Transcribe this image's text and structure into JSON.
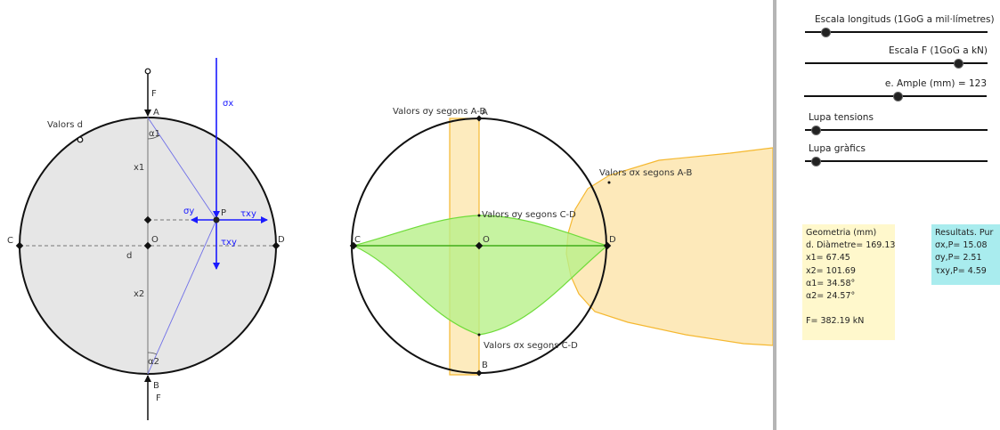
{
  "labels": {
    "F_top": "F",
    "F_bottom": "F",
    "A_left": "A",
    "B_left": "B",
    "C_left": "C",
    "D_left": "D",
    "O_left": "O",
    "P": "P",
    "x1": "x1",
    "x2": "x2",
    "d": "d",
    "alpha1": "α1",
    "alpha2": "α2",
    "valors_d": "Valors d",
    "sigma_x": "σx",
    "sigma_y": "σy",
    "tau_xy_h": "τxy",
    "tau_xy_v": "τxy",
    "A_mid": "A",
    "B_mid": "B",
    "C_mid": "C",
    "D_mid": "D",
    "O_mid": "O",
    "sy_AB": "Valors σy segons A-B",
    "sx_AB": "Valors σx segons A-B",
    "sy_CD": "Valors σy segons C-D",
    "sx_CD": "Valors σx segons C-D"
  },
  "sliders": [
    {
      "label": "Escala longituds (1GoG a mil·límetres)",
      "value_fraction": 0.11
    },
    {
      "label": "Escala F (1GoG a kN)",
      "value_fraction": 0.84
    },
    {
      "label": "e. Ample (mm) = 123",
      "value_fraction": 0.51
    },
    {
      "label": "Lupa tensions",
      "value_fraction": 0.06
    },
    {
      "label": "Lupa gràfics",
      "value_fraction": 0.06
    }
  ],
  "geometry_box": {
    "title": "Geometria (mm)",
    "diameter": "d. Diàmetre= 169.13",
    "x1": "x1= 67.45",
    "x2": "x2= 101.69",
    "alpha1": "α1= 34.58°",
    "alpha2": "α2= 24.57°",
    "force": "F= 382.19 kN"
  },
  "results_box": {
    "title": "Resultats. Pur",
    "sigma_x": "σx,P= 15.08",
    "sigma_y": "σy,P= 2.51",
    "tau_xy": "τxy,P= 4.59"
  },
  "colors": {
    "disk_fill": "#e6e6e6",
    "vector_blue": "#1a1aff",
    "green_fill": "#b8f08a",
    "orange_fill": "#fde7b3",
    "geo_box_bg": "#fff8cc",
    "res_box_bg": "#a9ecee"
  }
}
